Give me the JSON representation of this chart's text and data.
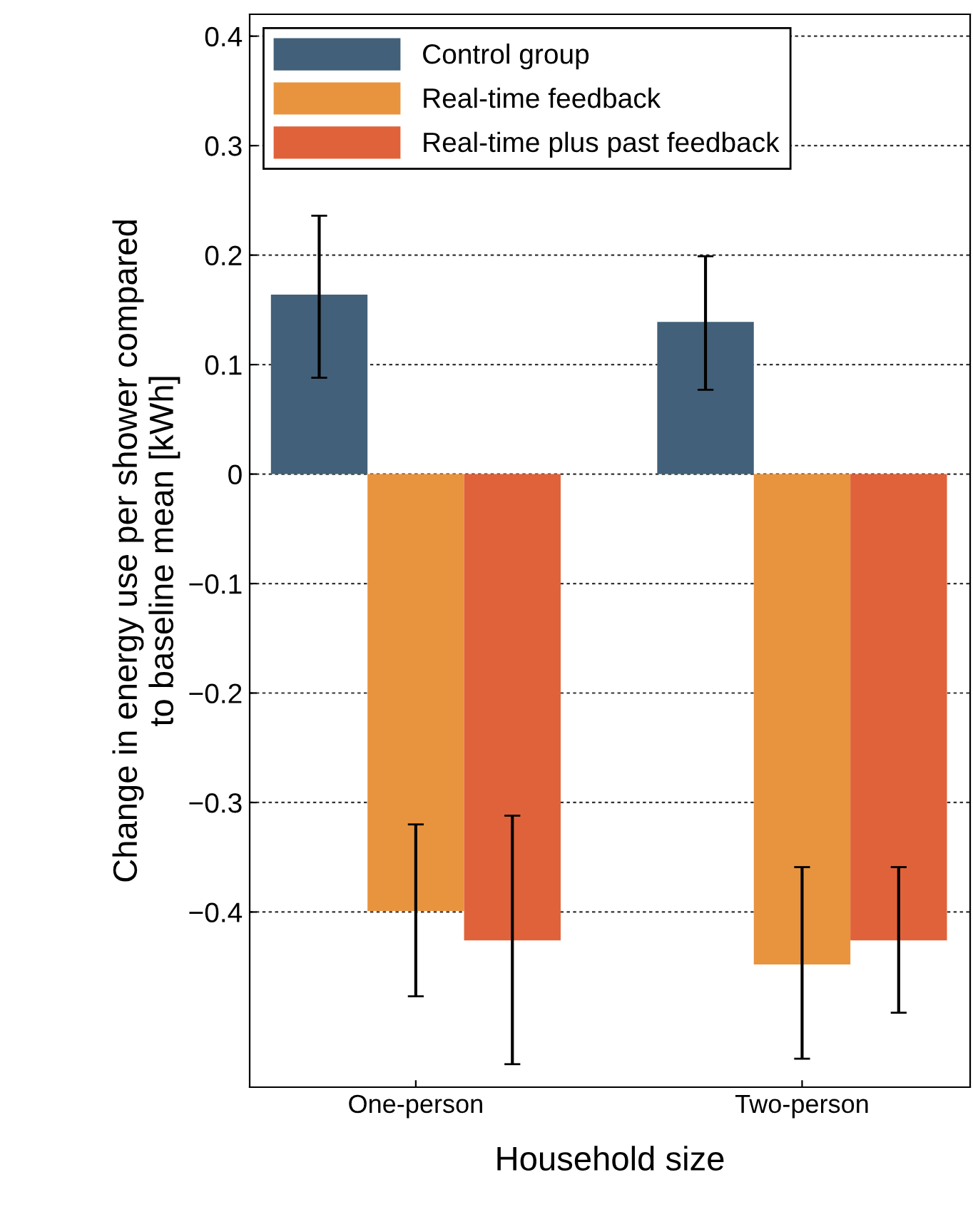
{
  "chart_data": {
    "type": "bar",
    "xlabel": "Household size",
    "ylabel": "Change in energy use per shower compared\nto baseline mean [kWh]",
    "categories": [
      "One-person",
      "Two-person"
    ],
    "series": [
      {
        "name": "Control group",
        "color": "#426079",
        "values": [
          0.164,
          0.139
        ],
        "errors": [
          [
            0.088,
            0.236
          ],
          [
            0.077,
            0.199
          ]
        ]
      },
      {
        "name": "Real-time feedback",
        "color": "#e8943f",
        "values": [
          -0.399,
          -0.448
        ],
        "errors": [
          [
            -0.477,
            -0.32
          ],
          [
            -0.534,
            -0.359
          ]
        ]
      },
      {
        "name": "Real-time plus past feedback",
        "color": "#e0623a",
        "values": [
          -0.426,
          -0.426
        ],
        "errors": [
          [
            -0.539,
            -0.312
          ],
          [
            -0.492,
            -0.359
          ]
        ]
      }
    ],
    "ylim": [
      -0.56,
      0.42
    ],
    "yticks": [
      0.4,
      0.3,
      0.2,
      0.1,
      0,
      {
        "value": -0.1,
        "label": "−0.1"
      },
      {
        "value": -0.2,
        "label": "−0.2"
      },
      {
        "value": -0.3,
        "label": "−0.3"
      },
      {
        "value": -0.4,
        "label": "−0.4"
      }
    ],
    "grid": "y",
    "legend": "top left"
  }
}
